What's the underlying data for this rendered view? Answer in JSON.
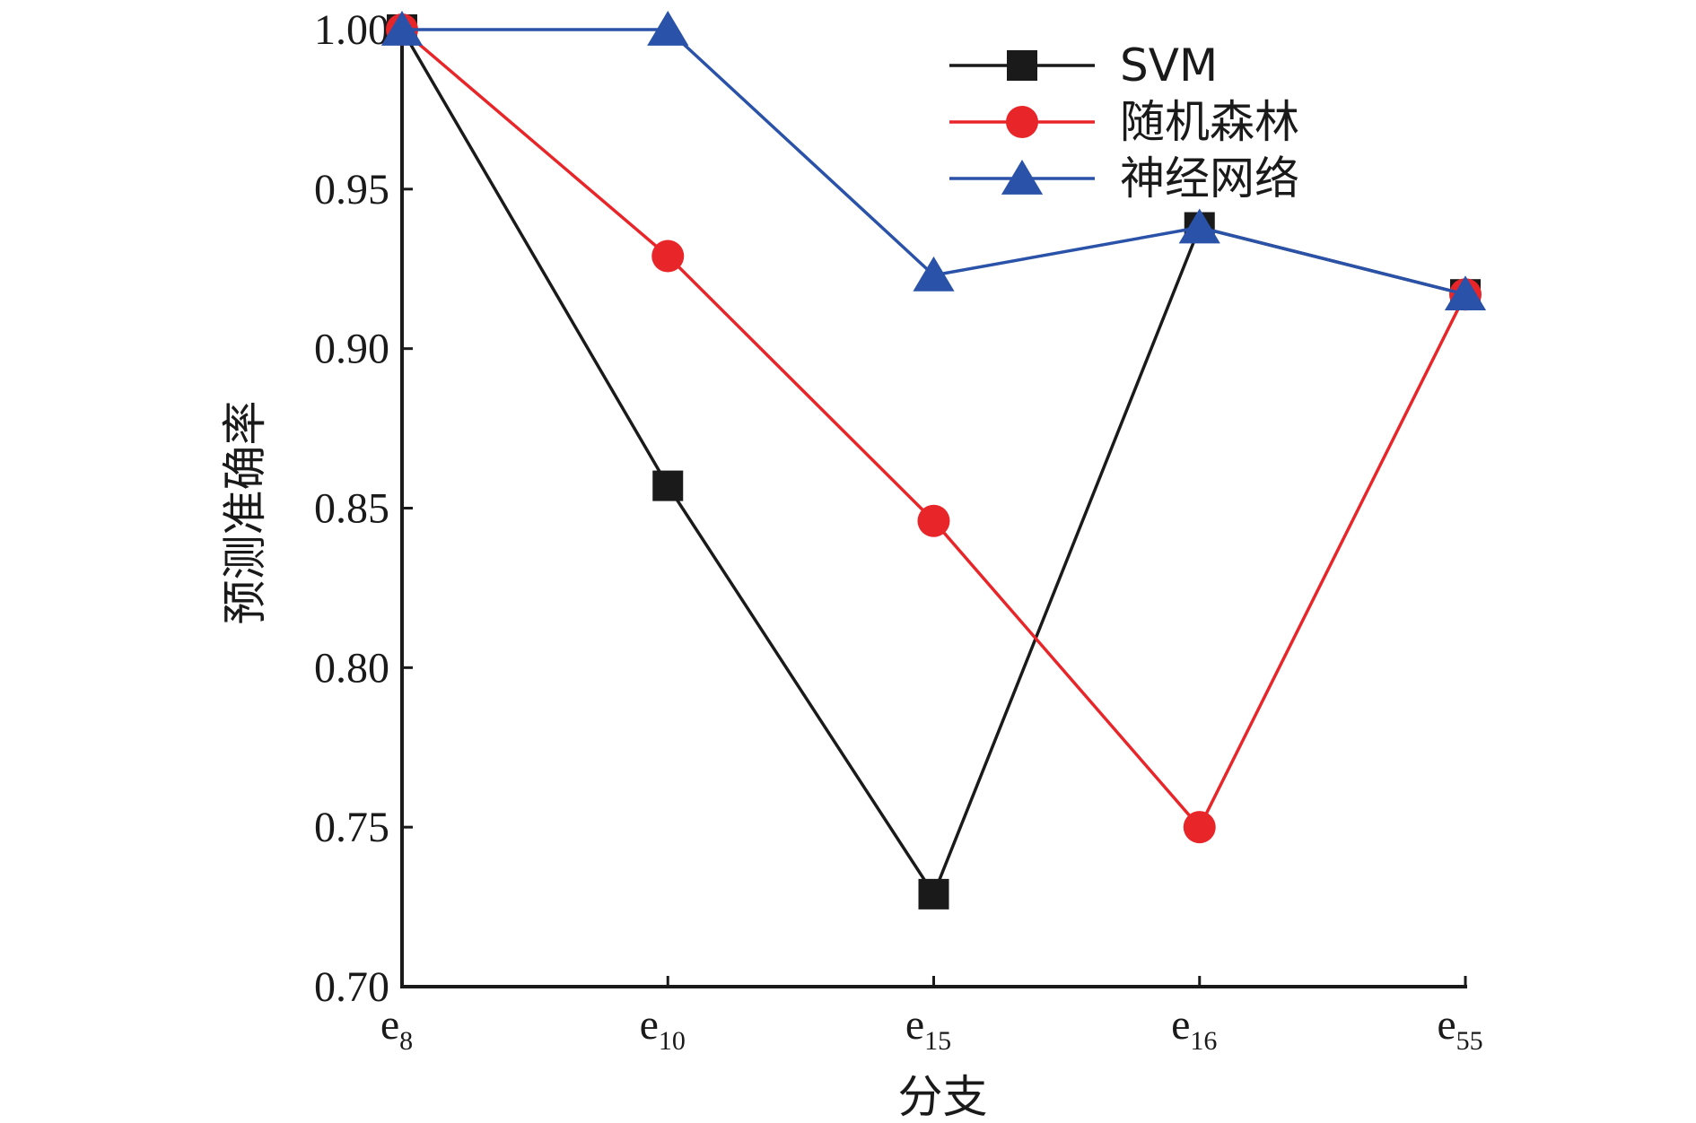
{
  "chart_data": {
    "type": "line",
    "categories": [
      {
        "base": "e",
        "sub": "8"
      },
      {
        "base": "e",
        "sub": "10"
      },
      {
        "base": "e",
        "sub": "15"
      },
      {
        "base": "e",
        "sub": "16"
      },
      {
        "base": "e",
        "sub": "55"
      }
    ],
    "series": [
      {
        "name": "SVM",
        "color": "#1a1a1a",
        "marker": "square",
        "values": [
          1.0,
          0.857,
          0.729,
          0.938,
          0.917
        ]
      },
      {
        "name": "随机森林",
        "color": "#e8262a",
        "marker": "circle",
        "values": [
          1.0,
          0.929,
          0.846,
          0.75,
          0.917
        ]
      },
      {
        "name": "神经网络",
        "color": "#2a52a8",
        "marker": "triangle",
        "values": [
          1.0,
          1.0,
          0.923,
          0.938,
          0.917
        ]
      }
    ],
    "xlabel": "分支",
    "ylabel": "预测准确率",
    "ylim": [
      0.7,
      1.0
    ],
    "yticks": [
      "0.70",
      "0.75",
      "0.80",
      "0.85",
      "0.90",
      "0.95",
      "1.00"
    ],
    "legend_position": "top-right",
    "grid": false
  }
}
